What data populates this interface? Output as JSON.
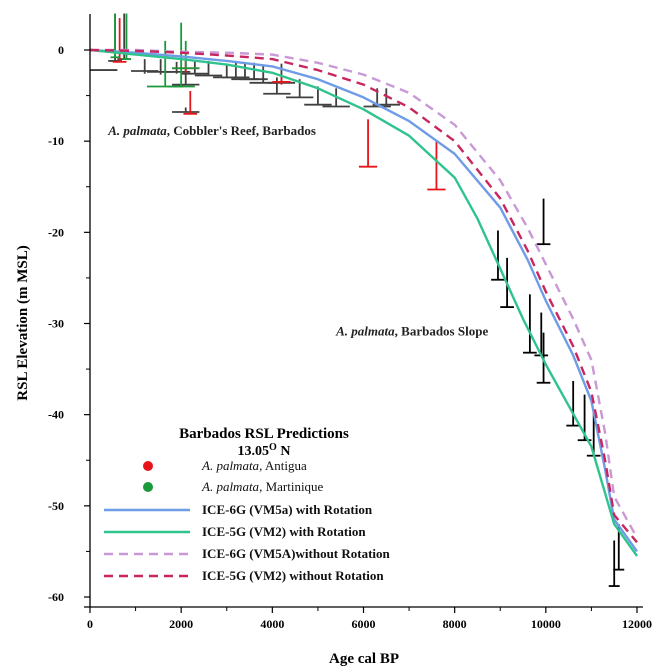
{
  "chart_data": {
    "type": "line",
    "xlabel": "Age cal BP",
    "ylabel": "RSL Elevation (m MSL)",
    "xlim": [
      0,
      12000
    ],
    "ylim": [
      -60,
      3
    ],
    "xticks": [
      0,
      2000,
      4000,
      6000,
      8000,
      10000,
      12000
    ],
    "xtick_labels": [
      "0",
      "2000",
      "4000",
      "6000",
      "8000",
      "10000",
      "12000"
    ],
    "yticks": [
      0,
      -10,
      -20,
      -30,
      -40,
      -50,
      -60
    ],
    "ytick_labels": [
      "0",
      "-10",
      "-20",
      "-30",
      "-40",
      "-50",
      "-60"
    ],
    "grid": false,
    "legend_position": "bottom-left",
    "annotations": [
      {
        "italic": "A. palmata",
        "rest": ", Cobbler's Reef, Barbados",
        "x": 400,
        "y": -9.3
      },
      {
        "italic": "A. palmata",
        "rest": ", Barbados Slope",
        "x": 5400,
        "y": -31.3
      }
    ],
    "legend": {
      "title": "Barbados RSL Predictions",
      "subtitle_base": "13.05",
      "subtitle_sup": "O",
      "subtitle_tail": " N",
      "markers": [
        {
          "italic": "A. palmata",
          "rest": ", Antigua",
          "color": "#e8141b"
        },
        {
          "italic": "A. palmata",
          "rest": ", Martinique",
          "color": "#1a9a3a"
        }
      ]
    },
    "series": [
      {
        "name": "ICE-6G (VM5a) with Rotation",
        "color": "#6f9ce6",
        "dash": "solid",
        "x": [
          0,
          1000,
          2000,
          3000,
          4000,
          5000,
          6000,
          7000,
          8000,
          9000,
          9600,
          10000,
          10600,
          11000,
          11300,
          11500,
          12000
        ],
        "y": [
          0,
          -0.3,
          -0.7,
          -1.2,
          -1.8,
          -3.2,
          -5.2,
          -7.8,
          -11.4,
          -17.3,
          -23.0,
          -27.5,
          -33.5,
          -38.5,
          -46.0,
          -51.5,
          -55.0
        ]
      },
      {
        "name": "ICE-5G (VM2) with Rotation",
        "color": "#2fc38e",
        "dash": "solid",
        "x": [
          0,
          1000,
          2000,
          3000,
          4000,
          5000,
          6000,
          7000,
          8000,
          8500,
          9000,
          9500,
          10000,
          10500,
          11000,
          11500,
          12000
        ],
        "y": [
          0,
          -0.5,
          -1.0,
          -1.6,
          -2.5,
          -4.2,
          -6.5,
          -9.4,
          -14.0,
          -18.5,
          -24.0,
          -29.5,
          -34.5,
          -39.0,
          -43.5,
          -52.0,
          -55.5
        ]
      },
      {
        "name": "ICE-6G (VM5A)without Rotation",
        "color": "#c998d6",
        "dash": "dashed",
        "x": [
          0,
          1000,
          2000,
          3000,
          4000,
          5000,
          6000,
          7000,
          8000,
          9000,
          9600,
          10000,
          10600,
          11000,
          11300,
          11500,
          12000
        ],
        "y": [
          0,
          0,
          -0.2,
          -0.3,
          -0.5,
          -1.4,
          -2.7,
          -4.7,
          -8.2,
          -14.3,
          -19.5,
          -23.5,
          -29.5,
          -34.0,
          -42.0,
          -49.0,
          -53.5
        ]
      },
      {
        "name": "ICE-5G (VM2) without Rotation",
        "color": "#c8265f",
        "dash": "dashed",
        "x": [
          0,
          1000,
          2000,
          3000,
          4000,
          5000,
          6000,
          7000,
          8000,
          9000,
          9600,
          10000,
          10600,
          11000,
          11300,
          11500,
          12000
        ],
        "y": [
          0,
          -0.1,
          -0.3,
          -0.6,
          -1.0,
          -2.2,
          -3.8,
          -6.3,
          -10.0,
          -16.3,
          -22.0,
          -26.5,
          -32.5,
          -37.5,
          -45.0,
          -51.0,
          -54.0
        ]
      }
    ],
    "points": [
      {
        "group": "barbados",
        "x": 300,
        "y": -2.2,
        "y_top": -2.2,
        "y_bot": -2.2,
        "xerr": 300
      },
      {
        "group": "barbados",
        "x": 550,
        "y": -1.2,
        "y_top": 4.0,
        "y_bot": -1.2,
        "xerr": 150
      },
      {
        "group": "barbados",
        "x": 750,
        "y": -1.0,
        "y_top": 4.0,
        "y_bot": -1.0,
        "xerr": 150
      },
      {
        "group": "barbados",
        "x": 1200,
        "y": -2.3,
        "y_top": -1.0,
        "y_bot": -2.6,
        "xerr": 300
      },
      {
        "group": "barbados",
        "x": 1550,
        "y": -2.4,
        "y_top": -1.0,
        "y_bot": -2.7,
        "xerr": 300
      },
      {
        "group": "barbados",
        "x": 1900,
        "y": -2.4,
        "y_top": -1.3,
        "y_bot": -2.6,
        "xerr": 300
      },
      {
        "group": "barbados",
        "x": 2100,
        "y": -3.8,
        "y_top": -1.0,
        "y_bot": -3.8,
        "xerr": 300
      },
      {
        "group": "barbados",
        "x": 2300,
        "y": -2.6,
        "y_top": -1.2,
        "y_bot": -2.6,
        "xerr": 300
      },
      {
        "group": "barbados",
        "x": 2100,
        "y": -6.8,
        "y_top": -6.3,
        "y_bot": -6.8,
        "xerr": 300
      },
      {
        "group": "barbados",
        "x": 2600,
        "y": -2.8,
        "y_top": -1.2,
        "y_bot": -2.8,
        "xerr": 300
      },
      {
        "group": "barbados",
        "x": 3000,
        "y": -3.0,
        "y_top": -1.5,
        "y_bot": -3.0,
        "xerr": 300
      },
      {
        "group": "barbados",
        "x": 3200,
        "y": -3.0,
        "y_top": -1.2,
        "y_bot": -3.0,
        "xerr": 300
      },
      {
        "group": "barbados",
        "x": 3400,
        "y": -3.2,
        "y_top": -1.4,
        "y_bot": -3.2,
        "xerr": 300
      },
      {
        "group": "barbados",
        "x": 3600,
        "y": -3.2,
        "y_top": -1.4,
        "y_bot": -3.2,
        "xerr": 300
      },
      {
        "group": "barbados",
        "x": 3800,
        "y": -3.6,
        "y_top": -1.6,
        "y_bot": -3.6,
        "xerr": 300
      },
      {
        "group": "barbados",
        "x": 4100,
        "y": -4.8,
        "y_top": -3.0,
        "y_bot": -4.8,
        "xerr": 300
      },
      {
        "group": "barbados",
        "x": 4200,
        "y": -3.6,
        "y_top": -1.5,
        "y_bot": -3.6,
        "xerr": 300
      },
      {
        "group": "barbados",
        "x": 4600,
        "y": -5.2,
        "y_top": -3.2,
        "y_bot": -5.2,
        "xerr": 300
      },
      {
        "group": "barbados",
        "x": 5000,
        "y": -6.0,
        "y_top": -4.0,
        "y_bot": -6.0,
        "xerr": 300
      },
      {
        "group": "barbados",
        "x": 5400,
        "y": -6.2,
        "y_top": -4.2,
        "y_bot": -6.2,
        "xerr": 300
      },
      {
        "group": "barbados",
        "x": 6300,
        "y": -6.2,
        "y_top": -4.2,
        "y_bot": -6.2,
        "xerr": 300
      },
      {
        "group": "barbados",
        "x": 6500,
        "y": -6.0,
        "y_top": -4.2,
        "y_bot": -6.0,
        "xerr": 300
      },
      {
        "group": "antigua",
        "x": 650,
        "y": -1.3,
        "y_top": 3.5,
        "y_bot": -1.3,
        "xerr": 150
      },
      {
        "group": "antigua",
        "x": 2100,
        "y": -2.0,
        "y_top": -1.0,
        "y_bot": -2.5,
        "xerr": 300
      },
      {
        "group": "antigua",
        "x": 2200,
        "y": -7.0,
        "y_top": -4.5,
        "y_bot": -7.0,
        "xerr": 150
      },
      {
        "group": "antigua",
        "x": 4200,
        "y": -3.5,
        "y_top": -2.8,
        "y_bot": -3.8,
        "xerr": 200
      },
      {
        "group": "antigua",
        "x": 6100,
        "y": -12.8,
        "y_top": -7.6,
        "y_bot": -12.8,
        "xerr": 200
      },
      {
        "group": "antigua",
        "x": 7600,
        "y": -15.3,
        "y_top": -10.0,
        "y_bot": -15.3,
        "xerr": 200
      },
      {
        "group": "martinique",
        "x": 550,
        "y": -0.8,
        "y_top": 4.0,
        "y_bot": -0.8,
        "xerr": 100
      },
      {
        "group": "martinique",
        "x": 800,
        "y": -1.0,
        "y_top": 4.0,
        "y_bot": -1.0,
        "xerr": 100
      },
      {
        "group": "martinique",
        "x": 1650,
        "y": -4.0,
        "y_top": 1.0,
        "y_bot": -4.0,
        "xerr": 400
      },
      {
        "group": "martinique",
        "x": 2000,
        "y": -4.0,
        "y_top": 3.0,
        "y_bot": -4.0,
        "xerr": 300
      },
      {
        "group": "martinique",
        "x": 2100,
        "y": -2.0,
        "y_top": 1.0,
        "y_bot": -2.0,
        "xerr": 300
      },
      {
        "group": "slope",
        "x": 8950,
        "y": -25.2,
        "y_top": -19.8,
        "y_bot": -25.2,
        "xerr": 150
      },
      {
        "group": "slope",
        "x": 9150,
        "y": -28.2,
        "y_top": -22.8,
        "y_bot": -28.2,
        "xerr": 150
      },
      {
        "group": "slope",
        "x": 9650,
        "y": -33.2,
        "y_top": -26.8,
        "y_bot": -33.2,
        "xerr": 150
      },
      {
        "group": "slope",
        "x": 9900,
        "y": -33.5,
        "y_top": -28.8,
        "y_bot": -33.5,
        "xerr": 150
      },
      {
        "group": "slope",
        "x": 9950,
        "y": -36.5,
        "y_top": -31.0,
        "y_bot": -36.5,
        "xerr": 150
      },
      {
        "group": "slope",
        "x": 9950,
        "y": -21.3,
        "y_top": -16.3,
        "y_bot": -21.3,
        "xerr": 150
      },
      {
        "group": "slope",
        "x": 10600,
        "y": -41.2,
        "y_top": -36.3,
        "y_bot": -41.2,
        "xerr": 150
      },
      {
        "group": "slope",
        "x": 10850,
        "y": -42.8,
        "y_top": -37.8,
        "y_bot": -42.8,
        "xerr": 150
      },
      {
        "group": "slope",
        "x": 11050,
        "y": -44.5,
        "y_top": -39.5,
        "y_bot": -44.5,
        "xerr": 150
      },
      {
        "group": "slope",
        "x": 11500,
        "y": -58.8,
        "y_top": -53.8,
        "y_bot": -58.8,
        "xerr": 120
      },
      {
        "group": "slope",
        "x": 11600,
        "y": -57.0,
        "y_top": -52.0,
        "y_bot": -57.0,
        "xerr": 120
      }
    ],
    "group_colors": {
      "barbados": "#404040",
      "antigua": "#e8141b",
      "martinique": "#1a9a3a",
      "slope": "#000000"
    }
  }
}
